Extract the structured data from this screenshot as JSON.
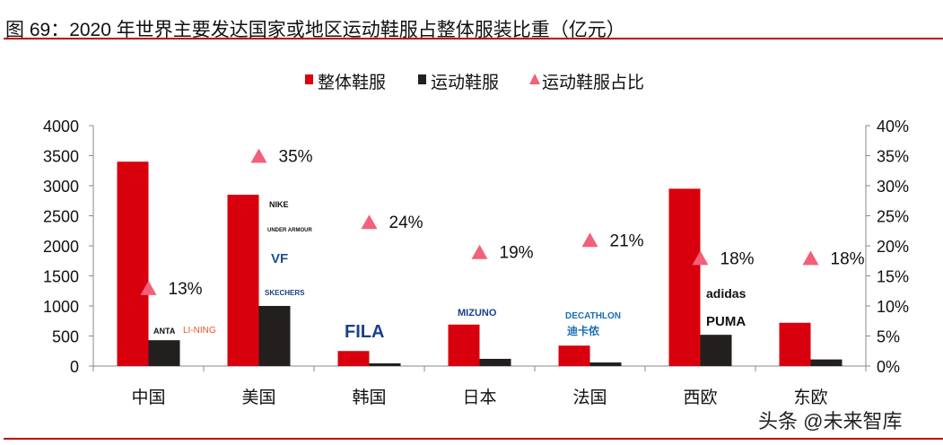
{
  "title": "图 69：2020 年世界主要发达国家或地区运动鞋服占整体服装比重（亿元）",
  "watermark": "头条 @未来智库",
  "colors": {
    "total": "#d9000d",
    "sports": "#231f1e",
    "share": "#f2607a",
    "rule": "#c00000"
  },
  "chart_data": {
    "type": "bar",
    "categories": [
      "中国",
      "美国",
      "韩国",
      "日本",
      "法国",
      "西欧",
      "东欧"
    ],
    "series": [
      {
        "name": "整体鞋服",
        "type": "bar",
        "axis": "left",
        "values": [
          3400,
          2850,
          250,
          690,
          340,
          2950,
          720
        ]
      },
      {
        "name": "运动鞋服",
        "type": "bar",
        "axis": "left",
        "values": [
          430,
          1000,
          45,
          120,
          60,
          520,
          110
        ]
      },
      {
        "name": "运动鞋服占比",
        "type": "scatter",
        "marker": "triangle",
        "axis": "right",
        "values": [
          13,
          35,
          24,
          19,
          21,
          18,
          18
        ],
        "labels": [
          "13%",
          "35%",
          "24%",
          "19%",
          "21%",
          "18%",
          "18%"
        ]
      }
    ],
    "ylim": [
      0,
      4000
    ],
    "yticks": [
      "0",
      "500",
      "1000",
      "1500",
      "2000",
      "2500",
      "3000",
      "3500",
      "4000"
    ],
    "y2lim": [
      0,
      40
    ],
    "y2ticks": [
      "0%",
      "5%",
      "10%",
      "15%",
      "20%",
      "25%",
      "30%",
      "35%",
      "40%"
    ],
    "legend_position": "top",
    "grid": false,
    "brand_logos": [
      {
        "category": "中国",
        "brands": [
          "ANTA",
          "LI-NING"
        ]
      },
      {
        "category": "美国",
        "brands": [
          "NIKE",
          "UNDER ARMOUR",
          "VF",
          "SKECHERS"
        ]
      },
      {
        "category": "韩国",
        "brands": [
          "FILA"
        ]
      },
      {
        "category": "日本",
        "brands": [
          "MIZUNO"
        ]
      },
      {
        "category": "法国",
        "brands": [
          "DECATHLON",
          "迪卡侬"
        ]
      },
      {
        "category": "西欧",
        "brands": [
          "adidas",
          "PUMA"
        ]
      }
    ]
  }
}
